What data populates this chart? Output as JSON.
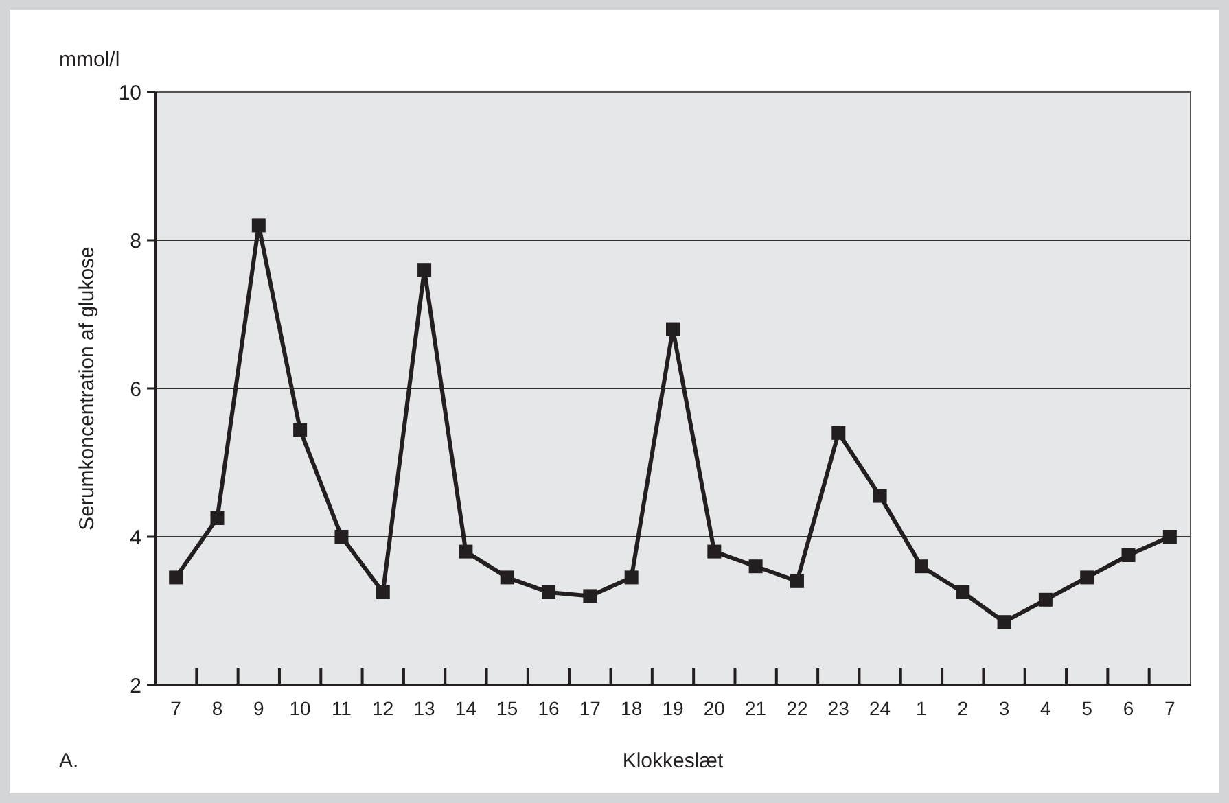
{
  "chart_data": {
    "type": "line",
    "xlabel": "Klokkeslæt",
    "ylabel": "Serumkoncentration af glukose",
    "annotations": [
      "mmol/l",
      "A."
    ],
    "categories": [
      "7",
      "8",
      "9",
      "10",
      "11",
      "12",
      "13",
      "14",
      "15",
      "16",
      "17",
      "18",
      "19",
      "20",
      "21",
      "22",
      "23",
      "24",
      "1",
      "2",
      "3",
      "4",
      "5",
      "6",
      "7"
    ],
    "series": [
      {
        "color": "#231f20",
        "values": [
          3.45,
          4.25,
          8.2,
          5.44,
          4,
          3.25,
          7.6,
          3.8,
          3.45,
          3.25,
          3.2,
          3.45,
          6.8,
          3.8,
          3.6,
          3.4,
          5.4,
          4.55,
          3.6,
          3.25,
          2.85,
          3.15,
          3.45,
          3.75,
          4
        ]
      }
    ],
    "ylim": [
      2,
      10
    ],
    "yticks": [
      2,
      4,
      6,
      8,
      10
    ],
    "grid": "y",
    "marker": "square",
    "line_style": "solid"
  }
}
